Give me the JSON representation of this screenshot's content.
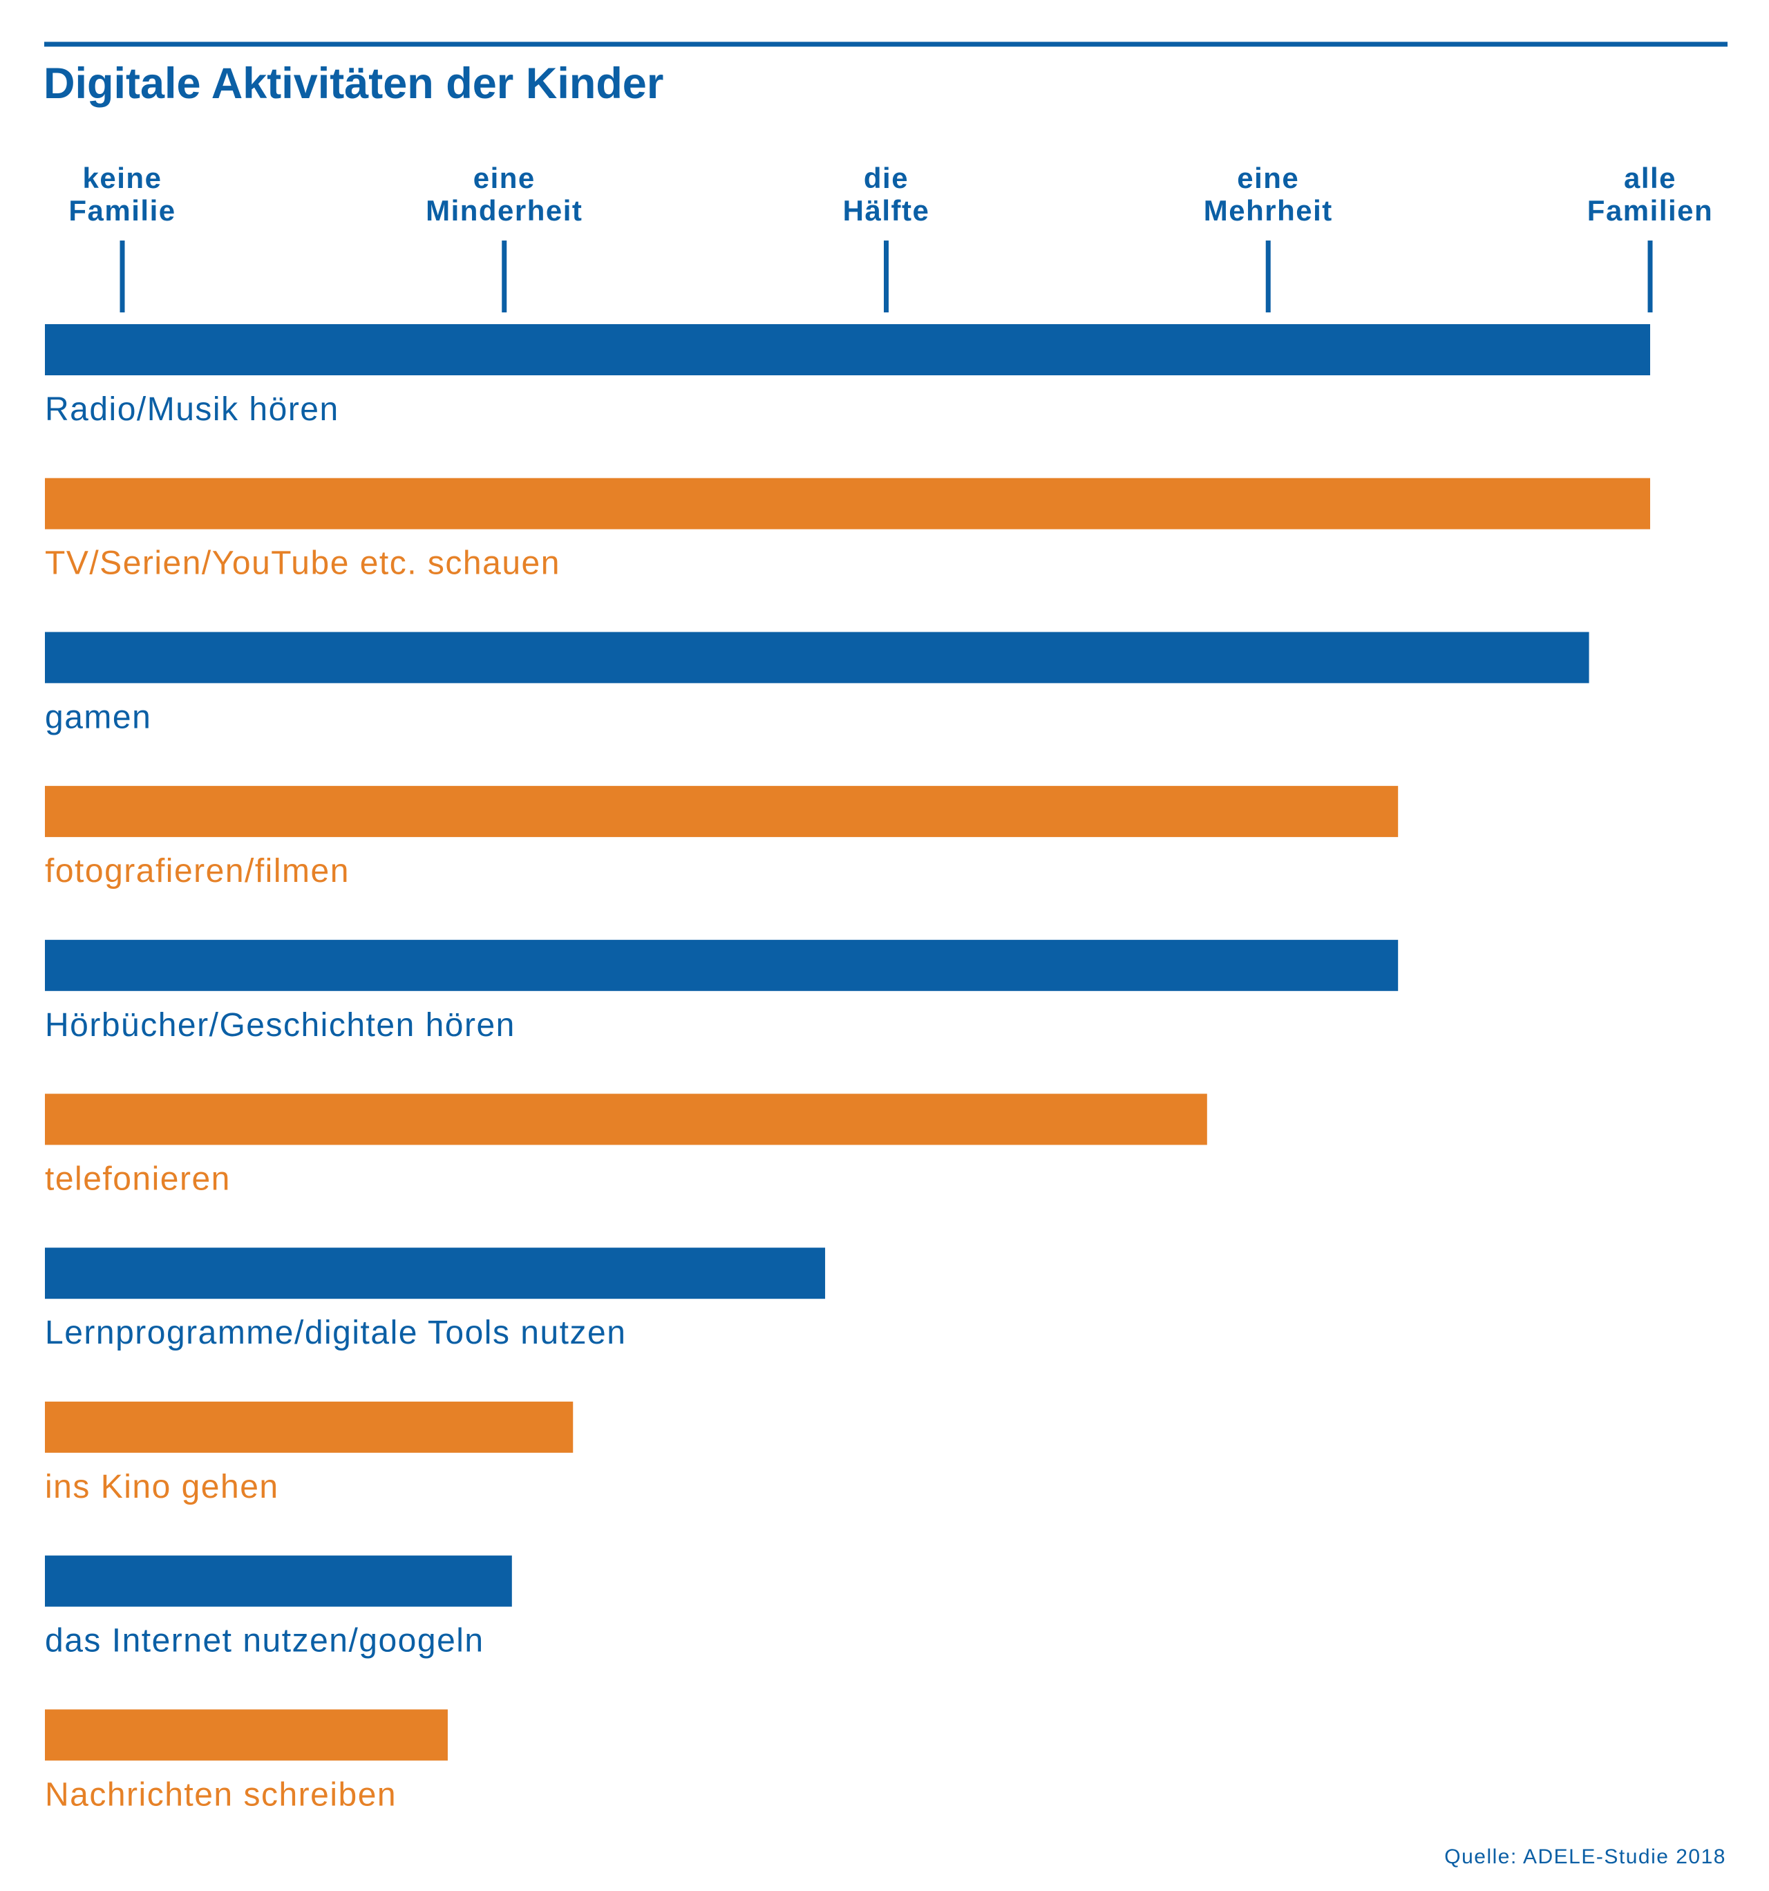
{
  "chart_data": {
    "type": "bar",
    "orientation": "horizontal",
    "title": "Digitale Aktivitäten der Kinder",
    "source": "Quelle: ADELE-Studie 2018",
    "xlim": [
      0,
      100
    ],
    "ticks": [
      {
        "value": 0,
        "lines": [
          "keine",
          "Familie"
        ]
      },
      {
        "value": 25,
        "lines": [
          "eine",
          "Minderheit"
        ]
      },
      {
        "value": 50,
        "lines": [
          "die",
          "Hälfte"
        ]
      },
      {
        "value": 75,
        "lines": [
          "eine",
          "Mehrheit"
        ]
      },
      {
        "value": 100,
        "lines": [
          "alle",
          "Familien"
        ]
      }
    ],
    "categories": [
      "Radio/Musik hören",
      "TV/Serien/YouTube etc. schauen",
      "gamen",
      "fotografieren/filmen",
      "Hörbücher/Geschichten hören",
      "telefonieren",
      "Lernprogramme/digitale Tools nutzen",
      "ins Kino gehen",
      "das Internet nutzen/googeln",
      "Nachrichten schreiben"
    ],
    "values": [
      100,
      100,
      96,
      83.5,
      83.5,
      71,
      46,
      29.5,
      25.5,
      21.3
    ],
    "colors": {
      "blue": "#0b5fa5",
      "orange": "#e68127",
      "rule": "#0b5fa5"
    },
    "grid": false,
    "legend": "none"
  }
}
